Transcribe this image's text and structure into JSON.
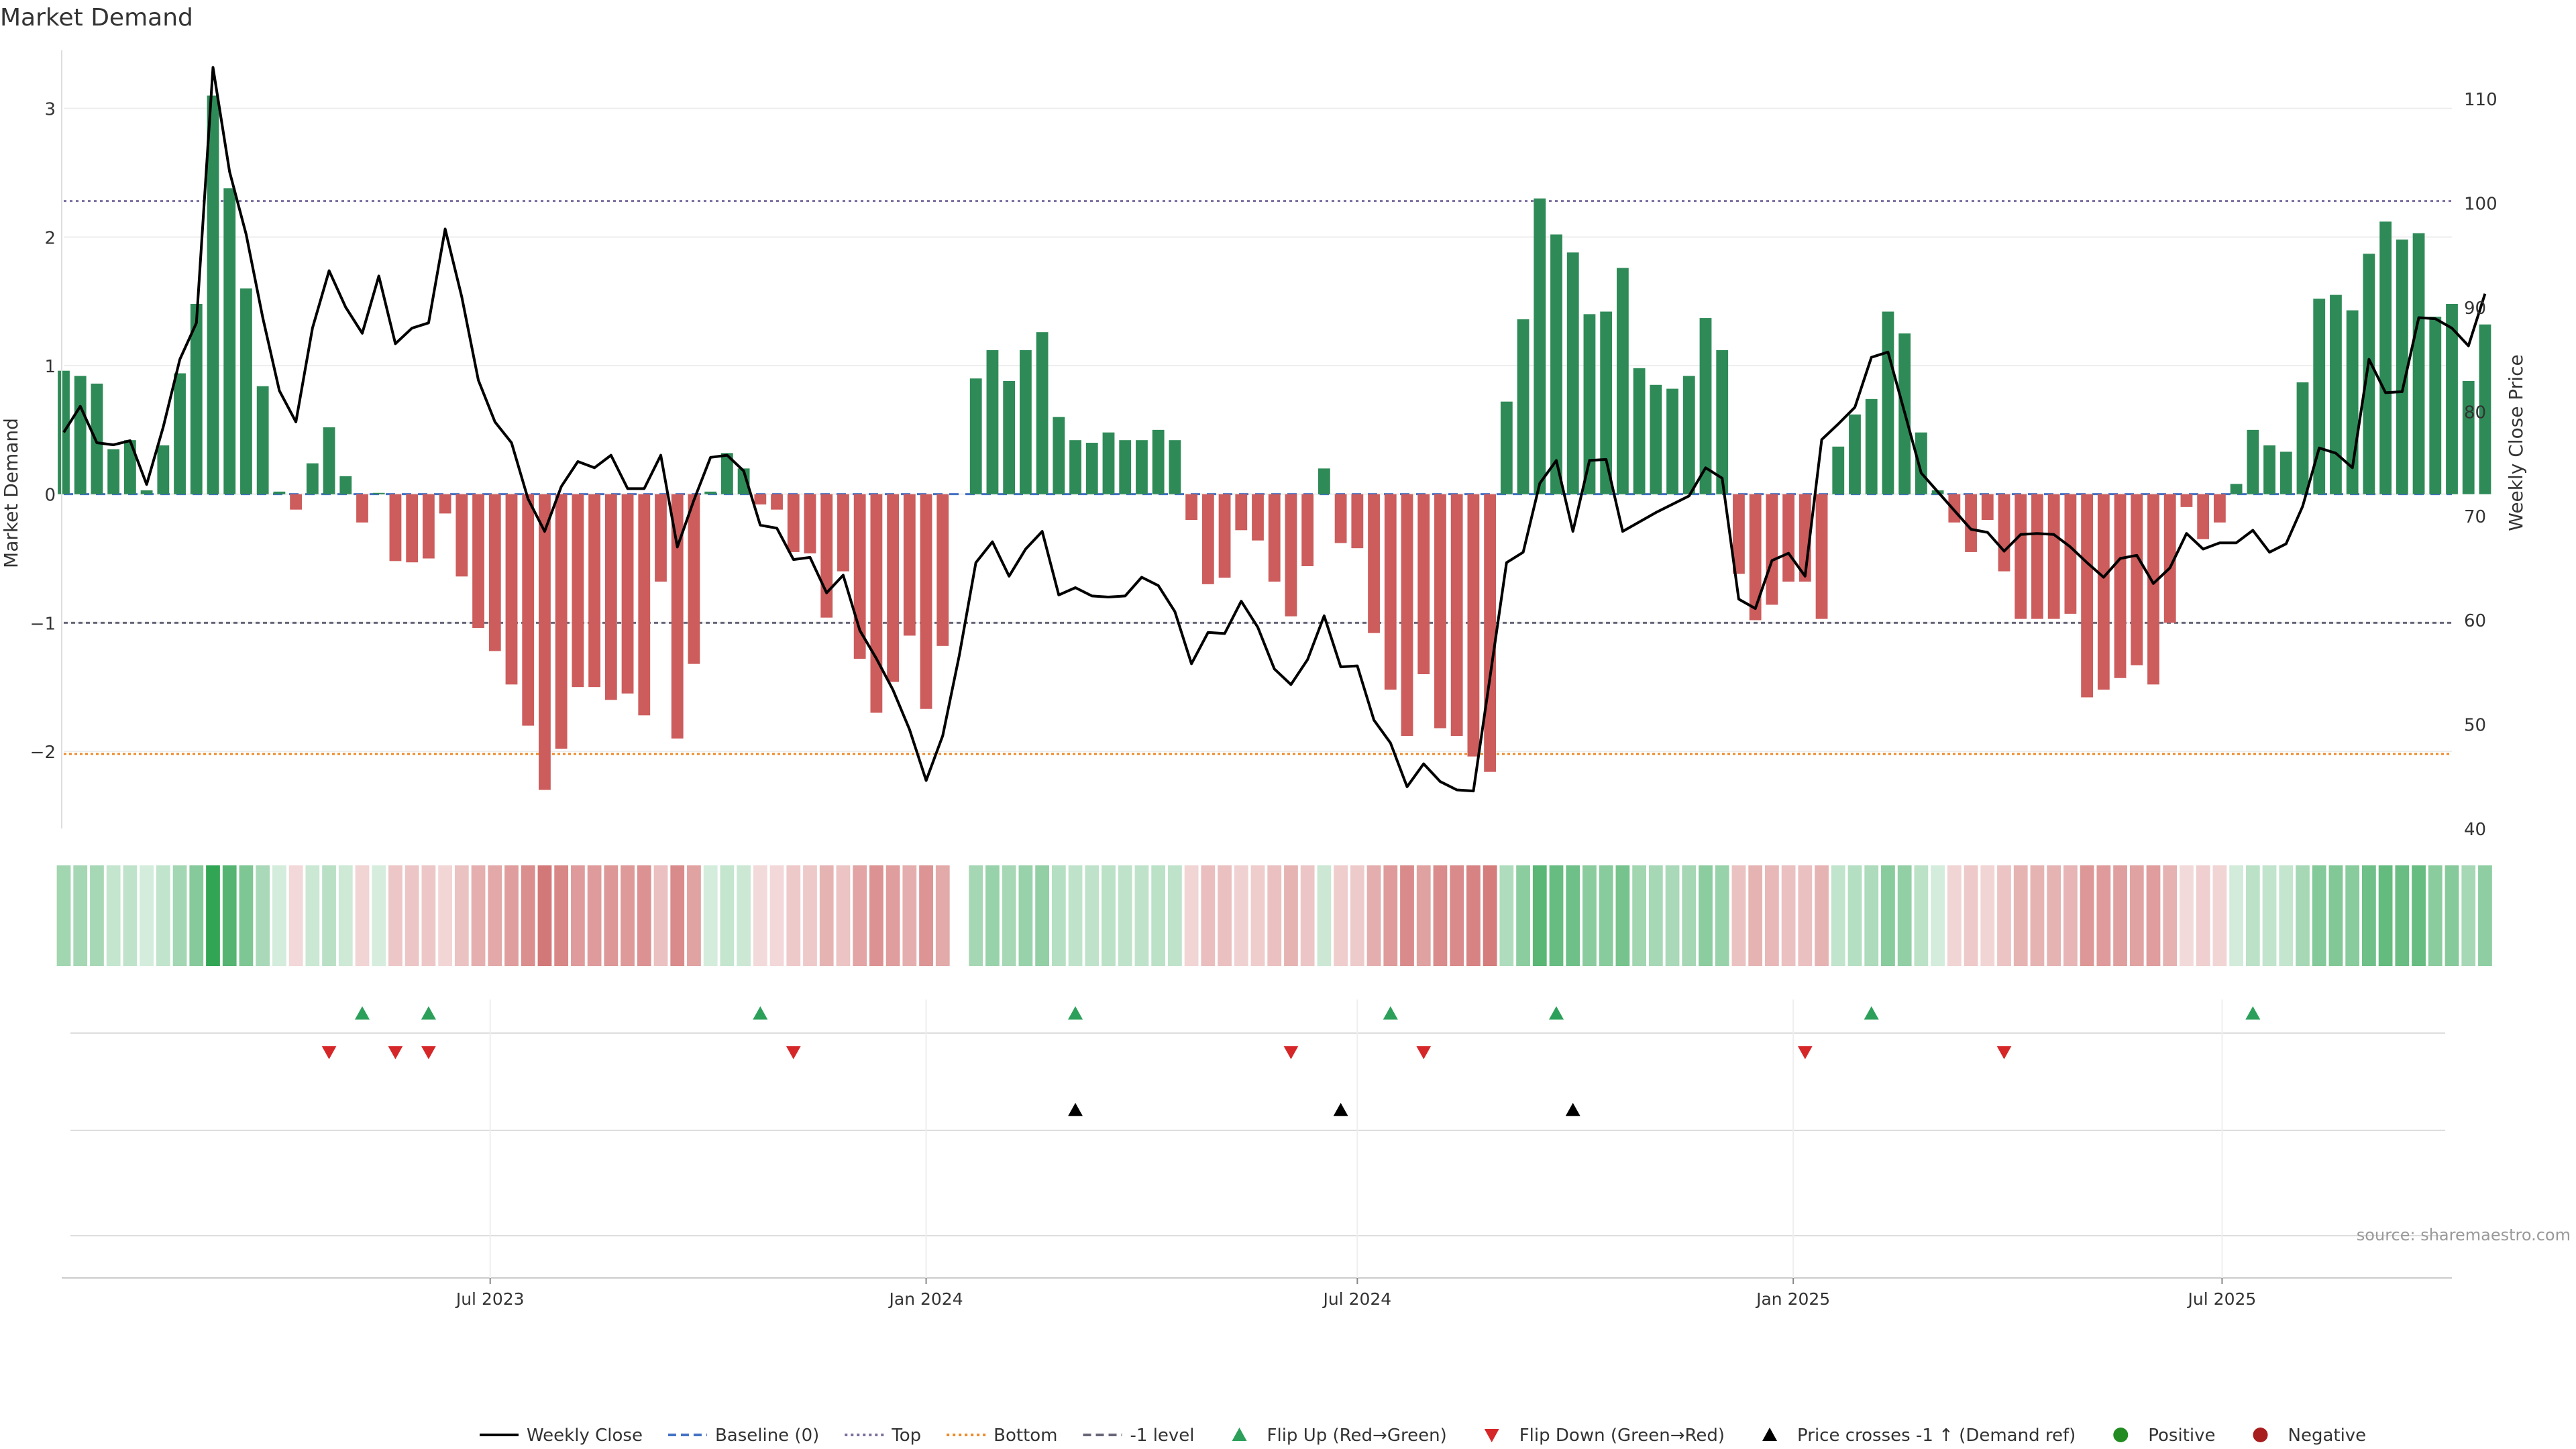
{
  "chart_data": {
    "type": "bar",
    "title": "Market Demand",
    "ylabel": "Market Demand",
    "y2label": "Weekly Close Price",
    "ylim": [
      -2.6,
      3.4
    ],
    "y2lim": [
      40,
      114
    ],
    "yticks": [
      -2,
      -1,
      0,
      1,
      2,
      3
    ],
    "y2ticks": [
      40,
      50,
      60,
      70,
      80,
      90,
      100,
      110
    ],
    "reference_lines": {
      "top": 2.28,
      "bottom": -2.02,
      "minus_one": -1.0,
      "baseline": 0
    },
    "x_start": "2023-01-02",
    "x_end": "2025-10-06",
    "xticks": [
      {
        "date": "2023-07-01",
        "label": "Jul 2023"
      },
      {
        "date": "2024-01-01",
        "label": "Jan 2024"
      },
      {
        "date": "2024-07-01",
        "label": "Jul 2024"
      },
      {
        "date": "2025-01-01",
        "label": "Jan 2025"
      },
      {
        "date": "2025-07-01",
        "label": "Jul 2025"
      }
    ],
    "series": [
      {
        "name": "Market Demand",
        "kind": "bar",
        "start": "2023-01-02",
        "values": [
          0.96,
          0.92,
          0.86,
          0.35,
          0.42,
          0.03,
          0.38,
          0.94,
          1.48,
          3.1,
          2.38,
          1.6,
          0.84,
          0.02,
          -0.12,
          0.24,
          0.52,
          0.14,
          -0.22,
          0.01,
          -0.52,
          -0.53,
          -0.5,
          -0.15,
          -0.64,
          -1.04,
          -1.22,
          -1.48,
          -1.8,
          -2.3,
          -1.98,
          -1.5,
          -1.5,
          -1.6,
          -1.55,
          -1.72,
          -0.68,
          -1.9,
          -1.32,
          0.02,
          0.32,
          0.2,
          -0.08,
          -0.12,
          -0.45,
          -0.46,
          -0.96,
          -0.6,
          -1.28,
          -1.7,
          -1.46,
          -1.1,
          -1.67,
          -1.18,
          null,
          0.9,
          1.12,
          0.88,
          1.12,
          1.26,
          0.6,
          0.42,
          0.4,
          0.48,
          0.42,
          0.42,
          0.5,
          0.42,
          -0.2,
          -0.7,
          -0.65,
          -0.28,
          -0.36,
          -0.68,
          -0.95,
          -0.56,
          0.2,
          -0.38,
          -0.42,
          -1.08,
          -1.52,
          -1.88,
          -1.4,
          -1.82,
          -1.88,
          -2.04,
          -2.16,
          0.72,
          1.36,
          2.3,
          2.02,
          1.88,
          1.4,
          1.42,
          1.76,
          0.98,
          0.85,
          0.82,
          0.92,
          1.37,
          1.12,
          -0.62,
          -0.98,
          -0.86,
          -0.68,
          -0.68,
          -0.97,
          0.37,
          0.62,
          0.74,
          1.42,
          1.25,
          0.48,
          0.03,
          -0.22,
          -0.45,
          -0.2,
          -0.6,
          -0.97,
          -0.97,
          -0.97,
          -0.93,
          -1.58,
          -1.52,
          -1.43,
          -1.33,
          -1.48,
          -1.0,
          -0.1,
          -0.35,
          -0.22,
          0.08,
          0.5,
          0.38,
          0.33,
          0.87,
          1.52,
          1.55,
          1.43,
          1.87,
          2.12,
          1.98,
          2.03,
          1.38,
          1.48,
          0.88,
          1.32
        ]
      },
      {
        "name": "Weekly Close",
        "kind": "line",
        "start": "2023-01-02",
        "values": [
          78,
          80.5,
          77,
          76.8,
          77.2,
          73,
          78.5,
          85,
          88.5,
          113,
          103,
          97,
          89,
          82,
          79,
          88,
          93.5,
          90,
          87.5,
          93,
          86.5,
          88,
          88.5,
          97.5,
          91,
          83,
          79,
          77,
          71.6,
          68.5,
          72.8,
          75.2,
          74.6,
          75.8,
          72.6,
          72.6,
          75.8,
          67,
          71.5,
          75.6,
          75.8,
          74.3,
          69.1,
          68.8,
          65.8,
          66,
          62.6,
          64.3,
          59,
          56.3,
          53.3,
          49.5,
          44.6,
          48.9,
          56.6,
          65.5,
          67.5,
          64.2,
          66.8,
          68.5,
          62.4,
          63.1,
          62.3,
          62.2,
          62.3,
          64.1,
          63.3,
          60.8,
          55.8,
          58.8,
          58.7,
          61.8,
          59.3,
          55.3,
          53.8,
          56.2,
          60.4,
          55.5,
          55.6,
          50.4,
          48.2,
          44,
          46.2,
          44.5,
          43.7,
          43.6,
          54.5,
          65.5,
          66.5,
          73.1,
          75.3,
          68.5,
          75.3,
          75.4,
          68.5,
          69.4,
          70.3,
          71.1,
          71.9,
          74.6,
          73.6,
          62,
          61.1,
          65.7,
          66.4,
          64.2,
          77.3,
          78.8,
          80.4,
          85.2,
          85.7,
          79.9,
          74.1,
          72.3,
          70.5,
          68.7,
          68.4,
          66.6,
          68.2,
          68.3,
          68.2,
          67,
          65.5,
          64.1,
          65.9,
          66.2,
          63.5,
          65,
          68.3,
          66.8,
          67.4,
          67.4,
          68.6,
          66.5,
          67.3,
          70.9,
          76.5,
          76,
          74.6,
          85,
          81.8,
          81.9,
          89,
          88.9,
          88,
          86.3,
          91.3
        ]
      }
    ],
    "heat_strip": {
      "label": "Demand intensity strip",
      "source": "Market Demand"
    },
    "events": {
      "flip_up": [
        "2023-05-08",
        "2023-06-05",
        "2023-10-23",
        "2024-03-04",
        "2024-07-15",
        "2024-09-23",
        "2025-02-03",
        "2025-07-14"
      ],
      "flip_down": [
        "2023-04-24",
        "2023-05-22",
        "2023-06-05",
        "2023-11-06",
        "2024-06-03",
        "2024-07-29",
        "2025-01-06",
        "2025-03-31"
      ],
      "price_cross": [
        "2024-03-04",
        "2024-06-24",
        "2024-09-30"
      ]
    },
    "legend": [
      {
        "label": "Weekly Close",
        "kind": "line",
        "color": "#000000"
      },
      {
        "label": "Baseline (0)",
        "kind": "dash",
        "color": "#4472c4"
      },
      {
        "label": "Top",
        "kind": "dot",
        "color": "#7b6d9e"
      },
      {
        "label": "Bottom",
        "kind": "dot",
        "color": "#ee8a2a"
      },
      {
        "label": "-1 level",
        "kind": "dash",
        "color": "#666677"
      },
      {
        "label": "Flip Up (Red→Green)",
        "kind": "tri-up",
        "color": "#2ca05a"
      },
      {
        "label": "Flip Down (Green→Red)",
        "kind": "tri-down",
        "color": "#d62728"
      },
      {
        "label": "Price crosses -1 ↑ (Demand ref)",
        "kind": "tri-up",
        "color": "#000000"
      },
      {
        "label": "Positive",
        "kind": "dot-marker",
        "color": "#228b22"
      },
      {
        "label": "Negative",
        "kind": "dot-marker",
        "color": "#a81d1d"
      }
    ],
    "source": "source: sharemaestro.com",
    "colors": {
      "positive": "#2e8b57",
      "negative": "#cd5c5c",
      "price": "#000000"
    }
  }
}
